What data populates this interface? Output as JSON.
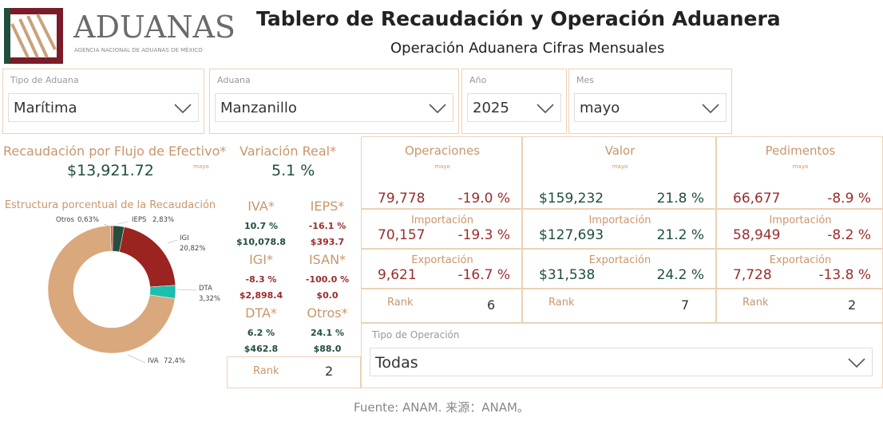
{
  "header": {
    "brand": "ADUANAS",
    "agency": "AGENCIA NACIONAL DE ADUANAS DE MÉXICO",
    "title": "Tablero de Recaudación y Operación Aduanera",
    "subtitle": "Operación Aduanera Cifras Mensuales"
  },
  "filters": [
    {
      "label": "Tipo de Aduana",
      "value": "Marítima"
    },
    {
      "label": "Aduana",
      "value": "Manzanillo"
    },
    {
      "label": "Año",
      "value": "2025"
    },
    {
      "label": "Mes",
      "value": "mayo"
    }
  ],
  "recaudacion": {
    "label": "Recaudación por Flujo de Efectivo*",
    "value": "$13,921.72",
    "period": "mayo"
  },
  "variacion": {
    "label": "Variación Real*",
    "value": "5.1 %"
  },
  "taxes": [
    {
      "name": "IVA*",
      "change": "10.7 %",
      "amount": "$10,078.8"
    },
    {
      "name": "IEPS*",
      "change": "-16.1 %",
      "amount": "$393.7"
    },
    {
      "name": "IGI*",
      "change": "-8.3 %",
      "amount": "$2,898.4"
    },
    {
      "name": "ISAN*",
      "change": "-100.0 %",
      "amount": "$0.0"
    },
    {
      "name": "DTA*",
      "change": "6.2 %",
      "amount": "$462.8"
    },
    {
      "name": "Otros*",
      "change": "24.1 %",
      "amount": "$88.0"
    }
  ],
  "tax_rank": {
    "label": "Rank",
    "value": "2"
  },
  "metrics": [
    {
      "title": "Operaciones",
      "period": "mayo",
      "total": {
        "value": "79,778",
        "change": "-19.0 %"
      },
      "importacion": {
        "label": "Importación",
        "value": "70,157",
        "change": "-19.3 %"
      },
      "exportacion": {
        "label": "Exportación",
        "value": "9,621",
        "change": "-16.7 %"
      },
      "rank": {
        "label": "Rank",
        "value": "6"
      }
    },
    {
      "title": "Valor",
      "period": "mayo",
      "total": {
        "value": "$159,232",
        "change": "21.8 %"
      },
      "importacion": {
        "label": "Importación",
        "value": "$127,693",
        "change": "21.2 %"
      },
      "exportacion": {
        "label": "Exportación",
        "value": "$31,538",
        "change": "24.2 %"
      },
      "rank": {
        "label": "Rank",
        "value": "7"
      }
    },
    {
      "title": "Pedimentos",
      "period": "mayo",
      "total": {
        "value": "66,677",
        "change": "-8.9 %"
      },
      "importacion": {
        "label": "Importación",
        "value": "58,949",
        "change": "-8.2 %"
      },
      "exportacion": {
        "label": "Exportación",
        "value": "7,728",
        "change": "-13.8 %"
      },
      "rank": {
        "label": "Rank",
        "value": "2"
      }
    }
  ],
  "operation_filter": {
    "label": "Tipo de Operación",
    "value": "Todas"
  },
  "footer": "Fuente: ANAM.  来源：ANAM。",
  "chart_data": {
    "type": "pie",
    "title": "Estructura porcentual de la Recaudación",
    "categories": [
      "Otros",
      "IEPS",
      "IGI",
      "DTA",
      "IVA"
    ],
    "values": [
      0.63,
      2.83,
      20.82,
      3.32,
      72.4
    ],
    "value_labels": [
      "0,63%",
      "2,83%",
      "20,82%",
      "3,32%",
      "72,4%"
    ],
    "colors": [
      "#e05a4f",
      "#244f3e",
      "#9b2420",
      "#1bbfae",
      "#d9a87c"
    ],
    "donut": true
  }
}
